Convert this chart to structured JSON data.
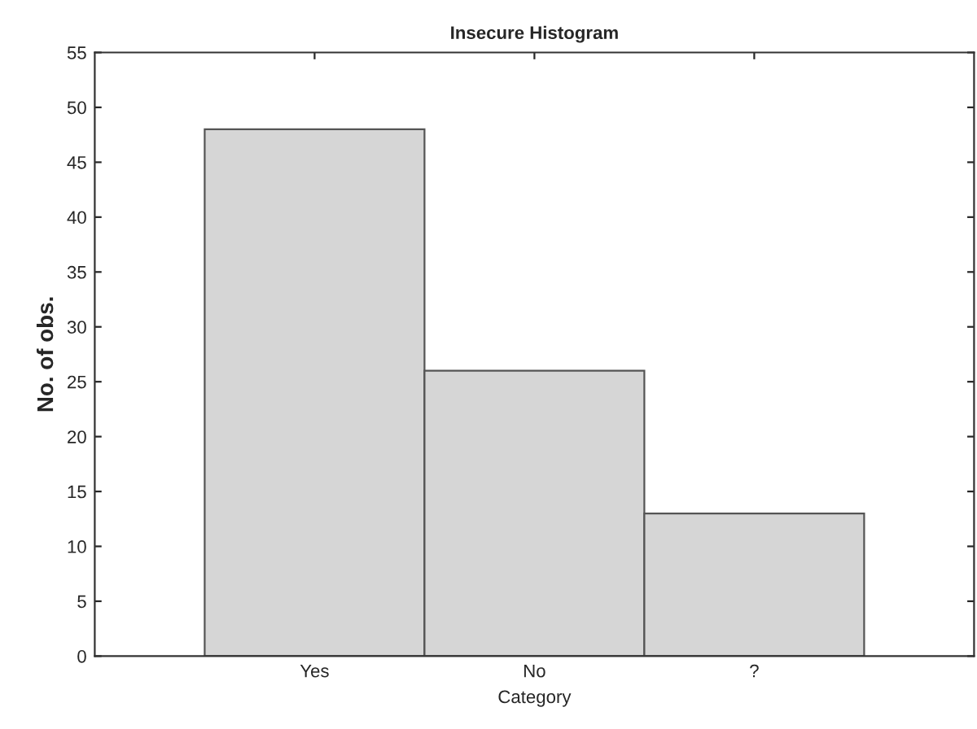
{
  "chart_data": {
    "type": "bar",
    "title": "Insecure Histogram",
    "xlabel": "Category",
    "ylabel": "No. of obs.",
    "categories": [
      "Yes",
      "No",
      "?"
    ],
    "values": [
      48,
      26,
      13
    ],
    "color": "#d6d6d6",
    "ylim": [
      0,
      55
    ],
    "yticks": [
      0,
      5,
      10,
      15,
      20,
      25,
      30,
      35,
      40,
      45,
      50,
      55
    ],
    "grid": false
  }
}
